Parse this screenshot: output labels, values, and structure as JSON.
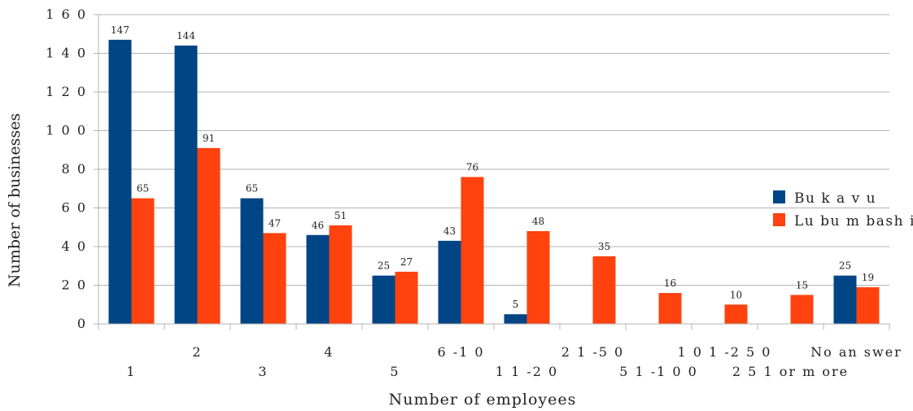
{
  "chart_data": {
    "type": "bar",
    "title": "",
    "xlabel": "Number of employees",
    "ylabel": "Number of businesses",
    "ylim": [
      0,
      160
    ],
    "yticks": [
      0,
      20,
      40,
      60,
      80,
      100,
      120,
      140,
      160
    ],
    "ytick_labels": [
      "0",
      "2 0",
      "4 0",
      "6 0",
      "8 0",
      "1 0 0",
      "1 2 0",
      "1 4 0",
      "1 6 0"
    ],
    "categories": [
      "1",
      "2",
      "3",
      "4",
      "5",
      "6 -1 0",
      "1 1 -2 0",
      "2 1 -5 0",
      "5 1 -1 0 0",
      "1 0 1 -2 5 0",
      "2 5 1  or m ore",
      "No an swer"
    ],
    "series": [
      {
        "name": "Bu k a v u",
        "color": "#004586",
        "values": [
          147,
          144,
          65,
          46,
          25,
          43,
          5,
          null,
          null,
          null,
          null,
          25
        ]
      },
      {
        "name": "Lu bu m bash i",
        "color": "#ff420e",
        "values": [
          65,
          91,
          47,
          51,
          27,
          76,
          48,
          35,
          16,
          10,
          15,
          19
        ]
      }
    ],
    "legend_position": "right",
    "grid": true
  }
}
